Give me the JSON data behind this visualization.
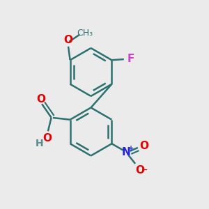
{
  "background_color": "#ebebeb",
  "bond_color": "#2d7070",
  "bond_width": 1.8,
  "atom_colors": {
    "O": "#e60000",
    "F": "#cc44cc",
    "N": "#2222dd",
    "H": "#5a8a8a",
    "C": "#2d7070"
  },
  "font_size_atom": 11,
  "font_size_small": 8
}
